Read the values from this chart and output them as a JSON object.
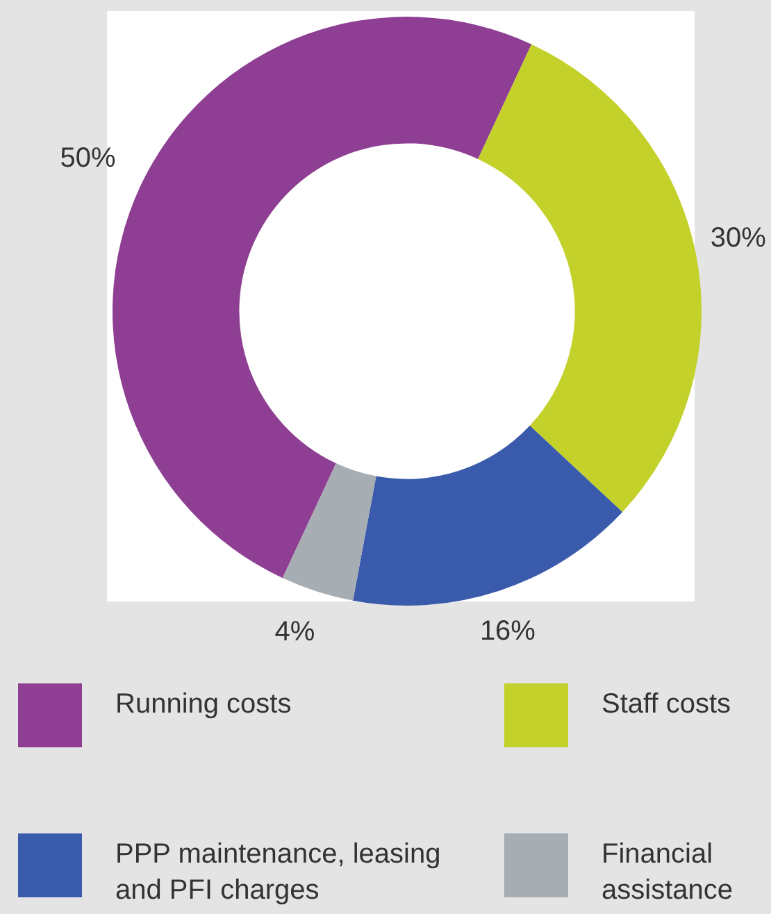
{
  "chart_data": {
    "type": "donut",
    "categories": [
      "Running costs",
      "Staff costs",
      "PPP maintenance, leasing and PFI charges",
      "Financial assistance"
    ],
    "values": [
      50,
      30,
      16,
      4
    ],
    "colors": [
      "#8e3f93",
      "#c3d12a",
      "#3a5bab",
      "#a6adb3"
    ],
    "value_labels": [
      "50%",
      "30%",
      "16%",
      "4%"
    ],
    "legend": "bottom"
  }
}
